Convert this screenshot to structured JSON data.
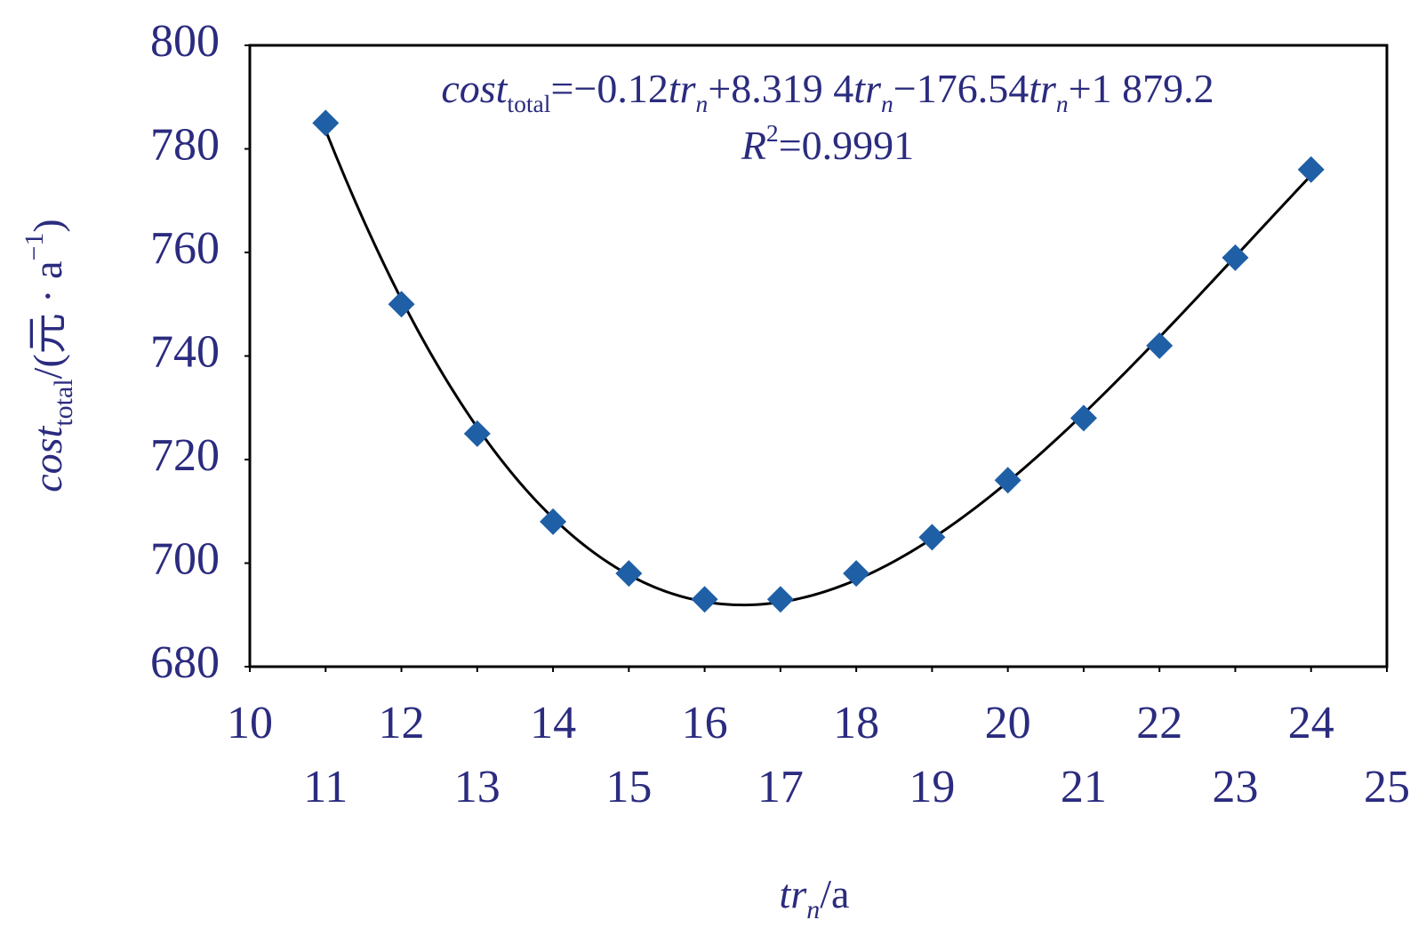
{
  "chart_data": {
    "type": "scatter",
    "x": [
      11,
      12,
      13,
      14,
      15,
      16,
      17,
      18,
      19,
      20,
      21,
      22,
      23,
      24
    ],
    "series": [
      {
        "color": "#1f5fa6",
        "values": [
          785,
          750,
          725,
          708,
          698,
          693,
          693,
          698,
          705,
          716,
          728,
          742,
          759,
          776
        ]
      }
    ],
    "marker": "diamond",
    "trendline": {
      "type": "polynomial",
      "order": 3,
      "color": "#000000"
    },
    "xlim": [
      10,
      25
    ],
    "xticks": [
      10,
      11,
      12,
      13,
      14,
      15,
      16,
      17,
      18,
      19,
      20,
      21,
      22,
      23,
      24,
      25
    ],
    "ylim": [
      680,
      800
    ],
    "yticks": [
      680,
      700,
      720,
      740,
      760,
      780,
      800
    ],
    "grid": false,
    "annotations": [
      [
        {
          "text": "cost",
          "style": "italic"
        },
        {
          "text": "total",
          "style": "sub"
        },
        {
          "text": "=−0.12",
          "style": "normal"
        },
        {
          "text": "tr",
          "style": "italic"
        },
        {
          "text": "n",
          "style": "sub-italic"
        },
        {
          "text": "+8.319 4",
          "style": "normal"
        },
        {
          "text": "tr",
          "style": "italic"
        },
        {
          "text": "n",
          "style": "sub-italic"
        },
        {
          "text": "−176.54",
          "style": "normal"
        },
        {
          "text": "tr",
          "style": "italic"
        },
        {
          "text": "n",
          "style": "sub-italic"
        },
        {
          "text": "+1 879.2",
          "style": "normal"
        }
      ],
      [
        {
          "text": "R",
          "style": "italic"
        },
        {
          "text": "2",
          "style": "sup"
        },
        {
          "text": "=0.9991",
          "style": "normal"
        }
      ]
    ],
    "xlabel": [
      {
        "text": "tr",
        "style": "italic"
      },
      {
        "text": "n",
        "style": "sub-italic"
      },
      {
        "text": "/a",
        "style": "normal"
      }
    ],
    "ylabel": [
      {
        "text": "cost",
        "style": "italic"
      },
      {
        "text": "total",
        "style": "sub"
      },
      {
        "text": "/(元 · a",
        "style": "normal"
      },
      {
        "text": "−1",
        "style": "sup"
      },
      {
        "text": ")",
        "style": "normal"
      }
    ]
  }
}
